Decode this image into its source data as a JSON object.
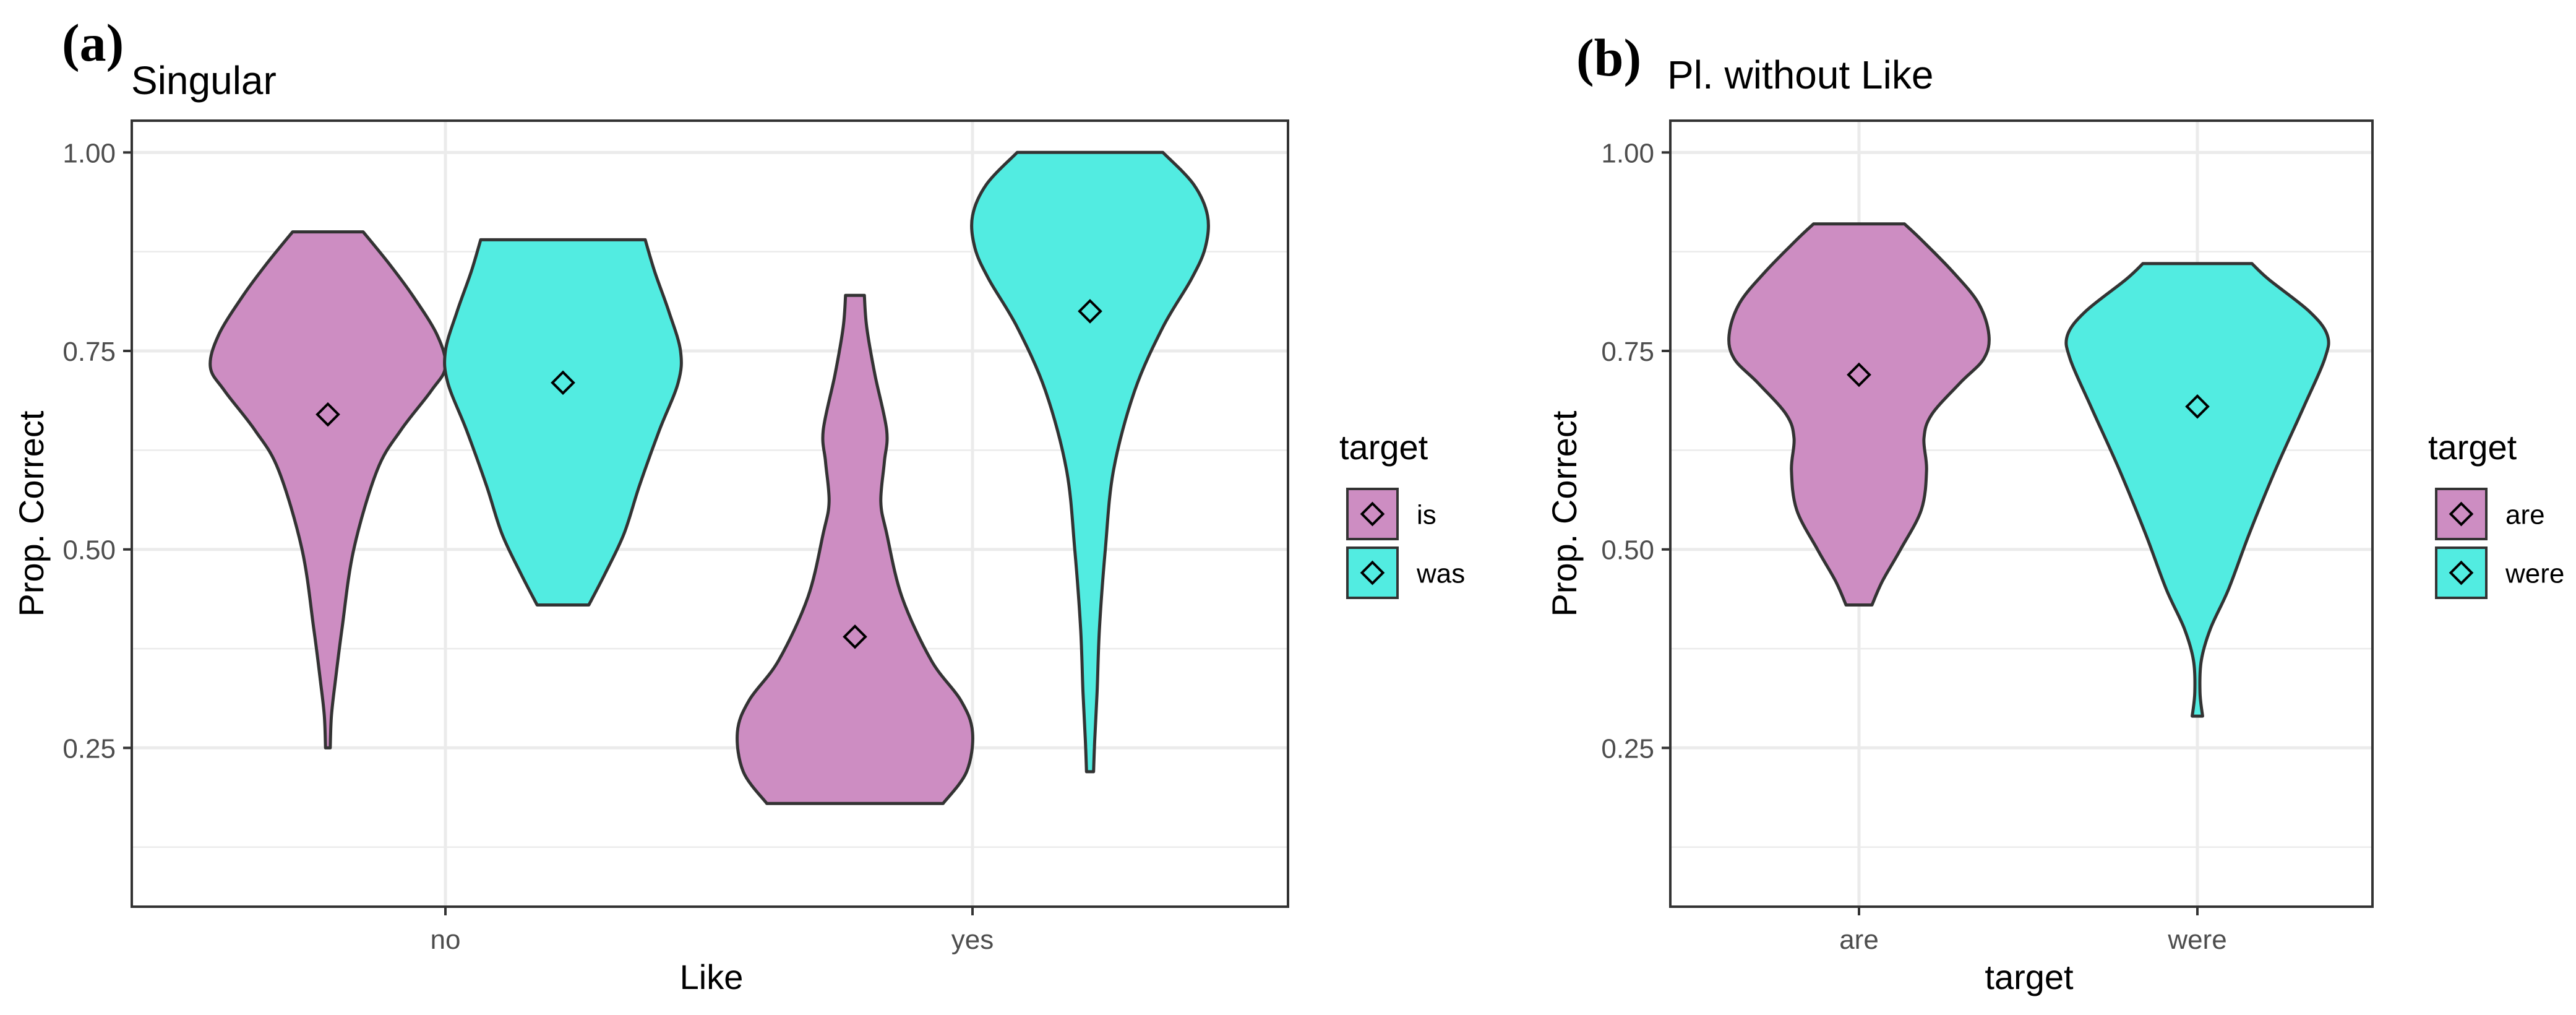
{
  "colors": {
    "is": "#cd8dc2",
    "was": "#52ece1",
    "are": "#cd8dc2",
    "were": "#52ece1",
    "outline": "#333333",
    "grid": "#ebebeb",
    "border": "#333333"
  },
  "chart_data": [
    {
      "type": "violin",
      "panel_label": "(a)",
      "title": "Singular",
      "xlabel": "Like",
      "ylabel": "Prop. Correct",
      "x_categories": [
        "no",
        "yes"
      ],
      "ylim": [
        0.05,
        1.04
      ],
      "y_ticks": [
        0.25,
        0.5,
        0.75,
        1.0
      ],
      "y_tick_labels": [
        "0.25",
        "0.50",
        "0.75",
        "1.00"
      ],
      "grid": true,
      "legend": {
        "title": "target",
        "position": "right",
        "items": [
          "is",
          "was"
        ]
      },
      "violins": [
        {
          "category": "no",
          "group": "is",
          "min": 0.25,
          "max": 0.9,
          "mean": 0.67,
          "profile": [
            [
              0.25,
              0.02
            ],
            [
              0.29,
              0.03
            ],
            [
              0.33,
              0.06
            ],
            [
              0.4,
              0.12
            ],
            [
              0.5,
              0.22
            ],
            [
              0.6,
              0.42
            ],
            [
              0.65,
              0.62
            ],
            [
              0.7,
              0.88
            ],
            [
              0.73,
              1.0
            ],
            [
              0.77,
              0.93
            ],
            [
              0.82,
              0.72
            ],
            [
              0.86,
              0.52
            ],
            [
              0.9,
              0.3
            ]
          ]
        },
        {
          "category": "no",
          "group": "was",
          "min": 0.43,
          "max": 0.89,
          "mean": 0.71,
          "profile": [
            [
              0.43,
              0.22
            ],
            [
              0.47,
              0.36
            ],
            [
              0.52,
              0.52
            ],
            [
              0.58,
              0.65
            ],
            [
              0.65,
              0.82
            ],
            [
              0.71,
              0.98
            ],
            [
              0.75,
              1.0
            ],
            [
              0.8,
              0.9
            ],
            [
              0.85,
              0.78
            ],
            [
              0.89,
              0.7
            ]
          ]
        },
        {
          "category": "yes",
          "group": "is",
          "min": 0.18,
          "max": 0.82,
          "mean": 0.39,
          "profile": [
            [
              0.18,
              0.75
            ],
            [
              0.22,
              0.95
            ],
            [
              0.27,
              1.0
            ],
            [
              0.31,
              0.9
            ],
            [
              0.36,
              0.65
            ],
            [
              0.44,
              0.4
            ],
            [
              0.52,
              0.27
            ],
            [
              0.56,
              0.22
            ],
            [
              0.61,
              0.25
            ],
            [
              0.65,
              0.27
            ],
            [
              0.72,
              0.17
            ],
            [
              0.78,
              0.1
            ],
            [
              0.82,
              0.08
            ]
          ]
        },
        {
          "category": "yes",
          "group": "was",
          "min": 0.22,
          "max": 1.0,
          "mean": 0.8,
          "profile": [
            [
              0.22,
              0.03
            ],
            [
              0.26,
              0.04
            ],
            [
              0.32,
              0.06
            ],
            [
              0.4,
              0.08
            ],
            [
              0.5,
              0.13
            ],
            [
              0.6,
              0.2
            ],
            [
              0.7,
              0.38
            ],
            [
              0.78,
              0.62
            ],
            [
              0.84,
              0.86
            ],
            [
              0.88,
              0.98
            ],
            [
              0.92,
              1.0
            ],
            [
              0.96,
              0.88
            ],
            [
              1.0,
              0.62
            ]
          ]
        }
      ]
    },
    {
      "type": "violin",
      "panel_label": "(b)",
      "title": "Pl. without Like",
      "xlabel": "target",
      "ylabel": "Prop. Correct",
      "x_categories": [
        "are",
        "were"
      ],
      "ylim": [
        0.05,
        1.04
      ],
      "y_ticks": [
        0.25,
        0.5,
        0.75,
        1.0
      ],
      "y_tick_labels": [
        "0.25",
        "0.50",
        "0.75",
        "1.00"
      ],
      "grid": true,
      "legend": {
        "title": "target",
        "position": "right",
        "items": [
          "are",
          "were"
        ]
      },
      "violins": [
        {
          "category": "are",
          "group": "are",
          "min": 0.43,
          "max": 0.91,
          "mean": 0.72,
          "profile": [
            [
              0.43,
              0.1
            ],
            [
              0.46,
              0.18
            ],
            [
              0.5,
              0.32
            ],
            [
              0.55,
              0.48
            ],
            [
              0.6,
              0.52
            ],
            [
              0.64,
              0.5
            ],
            [
              0.67,
              0.56
            ],
            [
              0.71,
              0.78
            ],
            [
              0.74,
              0.96
            ],
            [
              0.77,
              1.0
            ],
            [
              0.81,
              0.92
            ],
            [
              0.85,
              0.72
            ],
            [
              0.89,
              0.48
            ],
            [
              0.91,
              0.35
            ]
          ]
        },
        {
          "category": "were",
          "group": "were",
          "min": 0.29,
          "max": 0.86,
          "mean": 0.68,
          "profile": [
            [
              0.29,
              0.04
            ],
            [
              0.32,
              0.02
            ],
            [
              0.36,
              0.03
            ],
            [
              0.4,
              0.1
            ],
            [
              0.45,
              0.24
            ],
            [
              0.52,
              0.4
            ],
            [
              0.6,
              0.6
            ],
            [
              0.68,
              0.82
            ],
            [
              0.74,
              0.98
            ],
            [
              0.77,
              1.0
            ],
            [
              0.8,
              0.86
            ],
            [
              0.84,
              0.55
            ],
            [
              0.86,
              0.42
            ]
          ]
        }
      ]
    }
  ]
}
